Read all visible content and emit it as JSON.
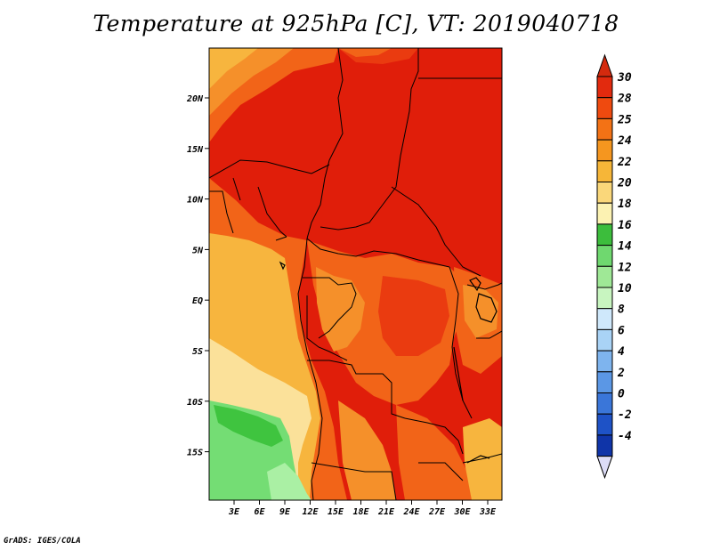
{
  "title": "Temperature at 925hPa [C], VT: 2019040718",
  "credit": "GrADS: IGES/COLA",
  "map": {
    "lon_ticks": [
      "3E",
      "6E",
      "9E",
      "12E",
      "15E",
      "18E",
      "21E",
      "24E",
      "27E",
      "30E",
      "33E"
    ],
    "lat_ticks": [
      "20N",
      "15N",
      "10N",
      "5N",
      "EQ",
      "5S",
      "10S",
      "15S"
    ]
  },
  "colorbar": {
    "labels": [
      "30",
      "28",
      "25",
      "24",
      "22",
      "20",
      "18",
      "16",
      "14",
      "12",
      "10",
      "8",
      "6",
      "4",
      "2",
      "0",
      "-2",
      "-4"
    ],
    "top_color": "#d42a0e",
    "bottom_color": "#dcdcf6",
    "colors": [
      "#e22a0e",
      "#ef4a0f",
      "#f37215",
      "#f5961f",
      "#f6b638",
      "#fad77a",
      "#fcf2b2",
      "#3cbd3c",
      "#6fd86f",
      "#9fe896",
      "#c8f5c0",
      "#cfe8fb",
      "#a9d3f6",
      "#7eb4ee",
      "#5b97e5",
      "#3a76d9",
      "#1e52c6",
      "#0f34a8"
    ]
  },
  "legend_colors": {
    "deep_red": "#e01e0a",
    "red_orange": "#ea3b10",
    "orange": "#f26418",
    "light_orange": "#f5902a",
    "yellow_orange": "#f7b53e",
    "pale_yellow": "#fbe19a",
    "green": "#3fc43f",
    "light_green": "#74dd74",
    "pale_green": "#aaf0a4"
  }
}
